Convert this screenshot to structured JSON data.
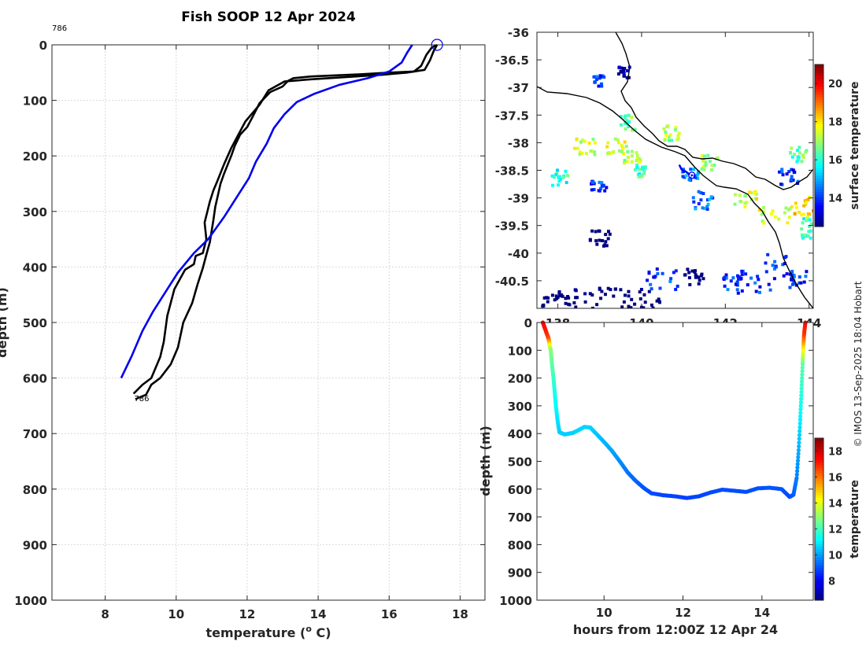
{
  "title": "Fish SOOP 12 Apr 2024",
  "credit": "© IMOS 13-Sep-2025 18:04 Hobart",
  "chart_data": [
    {
      "type": "line",
      "title": "Fish SOOP 12 Apr 2024",
      "xlabel_pre": "temperature (",
      "xlabel_sup": "o",
      "xlabel_post": " C)",
      "ylabel": "depth (m)",
      "xlim": [
        6.5,
        18.7
      ],
      "ylim": [
        0,
        1000
      ],
      "y_reversed": true,
      "xticks": [
        8,
        10,
        12,
        14,
        16,
        18
      ],
      "yticks": [
        0,
        100,
        200,
        300,
        400,
        500,
        600,
        700,
        800,
        900,
        1000
      ],
      "grid": true,
      "annotations": [
        {
          "text": "786",
          "x": 6.5,
          "y": -20
        },
        {
          "text": "786",
          "x": 8.95,
          "y": 632
        }
      ],
      "surface_marker": {
        "x": 17.35,
        "y": 0
      },
      "series": [
        {
          "name": "profile down",
          "color": "#000000",
          "points": [
            [
              17.35,
              0
            ],
            [
              17.2,
              5
            ],
            [
              17.05,
              18
            ],
            [
              16.9,
              38
            ],
            [
              16.7,
              48
            ],
            [
              16.0,
              50
            ],
            [
              15.2,
              53
            ],
            [
              14.5,
              55
            ],
            [
              13.8,
              57
            ],
            [
              13.3,
              60
            ],
            [
              13.15,
              65
            ],
            [
              13.0,
              75
            ],
            [
              12.65,
              85
            ],
            [
              12.35,
              105
            ],
            [
              12.15,
              130
            ],
            [
              12.0,
              148
            ],
            [
              11.8,
              162
            ],
            [
              11.65,
              182
            ],
            [
              11.55,
              200
            ],
            [
              11.35,
              232
            ],
            [
              11.25,
              250
            ],
            [
              11.1,
              292
            ],
            [
              11.05,
              315
            ],
            [
              10.95,
              355
            ],
            [
              10.85,
              378
            ],
            [
              10.75,
              402
            ],
            [
              10.6,
              432
            ],
            [
              10.45,
              465
            ],
            [
              10.2,
              500
            ],
            [
              10.05,
              545
            ],
            [
              9.85,
              575
            ],
            [
              9.55,
              600
            ],
            [
              9.3,
              612
            ],
            [
              9.15,
              630
            ],
            [
              8.85,
              638
            ]
          ]
        },
        {
          "name": "profile up",
          "color": "#000000",
          "points": [
            [
              8.8,
              628
            ],
            [
              9.05,
              612
            ],
            [
              9.3,
              600
            ],
            [
              9.55,
              562
            ],
            [
              9.65,
              535
            ],
            [
              9.75,
              488
            ],
            [
              9.95,
              440
            ],
            [
              10.25,
              405
            ],
            [
              10.5,
              395
            ],
            [
              10.55,
              380
            ],
            [
              10.75,
              375
            ],
            [
              10.85,
              350
            ],
            [
              10.8,
              320
            ],
            [
              10.95,
              282
            ],
            [
              11.05,
              262
            ],
            [
              11.15,
              247
            ],
            [
              11.35,
              215
            ],
            [
              11.55,
              186
            ],
            [
              11.95,
              138
            ],
            [
              12.35,
              108
            ],
            [
              12.6,
              82
            ],
            [
              13.05,
              66
            ],
            [
              13.8,
              62
            ],
            [
              14.8,
              58
            ],
            [
              15.8,
              54
            ],
            [
              16.5,
              50
            ],
            [
              17.0,
              45
            ],
            [
              17.15,
              28
            ],
            [
              17.25,
              12
            ],
            [
              17.35,
              0
            ]
          ]
        },
        {
          "name": "model",
          "color": "#0000ee",
          "points": [
            [
              16.65,
              0
            ],
            [
              16.5,
              15
            ],
            [
              16.35,
              32
            ],
            [
              16.0,
              48
            ],
            [
              15.4,
              60
            ],
            [
              14.6,
              72
            ],
            [
              13.9,
              88
            ],
            [
              13.4,
              103
            ],
            [
              13.05,
              125
            ],
            [
              12.75,
              150
            ],
            [
              12.55,
              178
            ],
            [
              12.25,
              210
            ],
            [
              12.05,
              240
            ],
            [
              11.75,
              270
            ],
            [
              11.35,
              310
            ],
            [
              10.9,
              350
            ],
            [
              10.5,
              375
            ],
            [
              10.05,
              410
            ],
            [
              9.65,
              450
            ],
            [
              9.35,
              480
            ],
            [
              9.05,
              515
            ],
            [
              8.75,
              560
            ],
            [
              8.45,
              600
            ]
          ]
        }
      ]
    },
    {
      "type": "heatmap",
      "xlim": [
        137.5,
        144.1
      ],
      "ylim": [
        -41,
        -36
      ],
      "xticks": [
        138,
        140,
        142,
        144
      ],
      "yticks": [
        -36,
        -36.5,
        -37,
        -37.5,
        -38,
        -38.5,
        -39,
        -39.5,
        -40,
        -40.5
      ],
      "colorbar_label": "surface temperature",
      "colorbar_range": [
        12.5,
        21
      ],
      "colorbar_ticks": [
        14,
        16,
        18,
        20
      ],
      "track": [
        [
          140.9,
          -38.4
        ],
        [
          140.95,
          -38.48
        ],
        [
          141.05,
          -38.52
        ],
        [
          141.1,
          -38.55
        ],
        [
          141.15,
          -38.58
        ]
      ],
      "track_end": [
        141.2,
        -38.59
      ]
    },
    {
      "type": "scatter",
      "xlabel": "hours from 12:00Z 12 Apr 24",
      "ylabel": "depth (m)",
      "xlim": [
        8.3,
        15.3
      ],
      "ylim": [
        0,
        1000
      ],
      "y_reversed": true,
      "xticks": [
        10,
        12,
        14
      ],
      "yticks": [
        0,
        100,
        200,
        300,
        400,
        500,
        600,
        700,
        800,
        900,
        1000
      ],
      "colorbar_label": "temperature",
      "colorbar_range": [
        6.5,
        19
      ],
      "colorbar_ticks": [
        8,
        10,
        12,
        14,
        16,
        18
      ],
      "points": [
        [
          8.45,
          0,
          17.4
        ],
        [
          8.5,
          20,
          17.3
        ],
        [
          8.55,
          40,
          17.0
        ],
        [
          8.6,
          60,
          16.5
        ],
        [
          8.62,
          80,
          14.5
        ],
        [
          8.65,
          100,
          12.9
        ],
        [
          8.68,
          150,
          12.3
        ],
        [
          8.72,
          200,
          11.9
        ],
        [
          8.75,
          250,
          11.5
        ],
        [
          8.78,
          300,
          11.2
        ],
        [
          8.82,
          350,
          10.9
        ],
        [
          8.87,
          395,
          10.6
        ],
        [
          9.0,
          403,
          10.6
        ],
        [
          9.2,
          398,
          10.6
        ],
        [
          9.35,
          388,
          10.7
        ],
        [
          9.5,
          376,
          10.7
        ],
        [
          9.65,
          378,
          10.7
        ],
        [
          9.8,
          400,
          10.5
        ],
        [
          10.0,
          430,
          10.3
        ],
        [
          10.2,
          462,
          10.1
        ],
        [
          10.4,
          500,
          9.8
        ],
        [
          10.6,
          540,
          9.5
        ],
        [
          10.8,
          570,
          9.3
        ],
        [
          11.0,
          595,
          9.1
        ],
        [
          11.2,
          615,
          9.0
        ],
        [
          11.5,
          622,
          8.9
        ],
        [
          11.8,
          626,
          8.9
        ],
        [
          12.1,
          632,
          8.85
        ],
        [
          12.4,
          626,
          8.9
        ],
        [
          12.7,
          612,
          8.95
        ],
        [
          13.0,
          602,
          9.0
        ],
        [
          13.3,
          606,
          9.0
        ],
        [
          13.6,
          610,
          9.0
        ],
        [
          13.9,
          597,
          9.05
        ],
        [
          14.2,
          595,
          9.1
        ],
        [
          14.5,
          600,
          9.1
        ],
        [
          14.7,
          628,
          8.9
        ],
        [
          14.8,
          620,
          9.2
        ],
        [
          14.88,
          560,
          9.6
        ],
        [
          14.93,
          460,
          10.2
        ],
        [
          14.97,
          350,
          11.0
        ],
        [
          15.0,
          250,
          11.7
        ],
        [
          15.03,
          150,
          12.3
        ],
        [
          15.05,
          80,
          15.0
        ],
        [
          15.07,
          40,
          16.8
        ],
        [
          15.1,
          0,
          17.3
        ]
      ]
    }
  ]
}
